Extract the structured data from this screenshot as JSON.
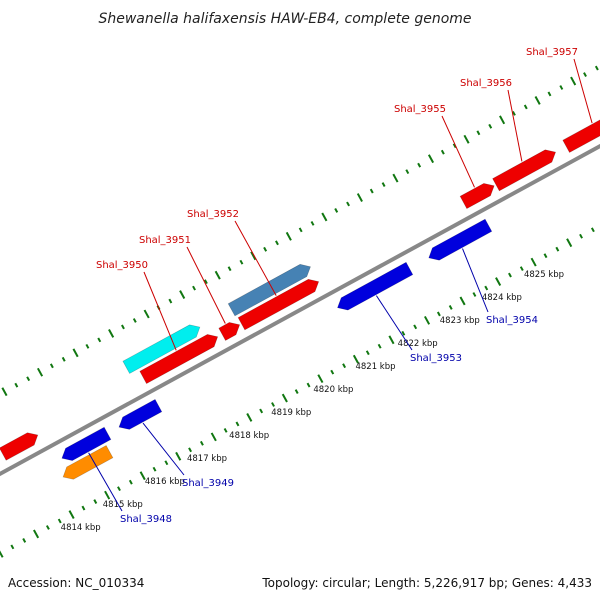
{
  "title": "Shewanella halifaxensis HAW-EB4, complete genome",
  "footer": {
    "accession": "Accession: NC_010334",
    "info": "Topology: circular; Length: 5,226,917 bp; Genes: 4,433"
  },
  "colors": {
    "forward": "#ee0000",
    "reverse": "#0000dd",
    "cyan": "#00eeee",
    "steel": "#4682b4",
    "orange": "#ff8c00",
    "backbone": "#888888",
    "ticks": "#117711",
    "label_forward": "#cc0000",
    "label_reverse": "#0000aa"
  },
  "scale": {
    "ticks": [
      "4814 kbp",
      "4815 kbp",
      "4816 kbp",
      "4817 kbp",
      "4818 kbp",
      "4819 kbp",
      "4820 kbp",
      "4821 kbp",
      "4822 kbp",
      "4823 kbp",
      "4824 kbp",
      "4825 kbp"
    ]
  },
  "genes": {
    "forward": [
      {
        "name": "",
        "color": "forward"
      },
      {
        "name": "Shal_3950",
        "color": "forward"
      },
      {
        "name": "Shal_3951",
        "color": "forward"
      },
      {
        "name": "Shal_3952",
        "color": "forward"
      },
      {
        "name": "Shal_3955",
        "color": "forward"
      },
      {
        "name": "Shal_3956",
        "color": "forward"
      },
      {
        "name": "Shal_3957",
        "color": "forward"
      }
    ],
    "forward_outer": [
      {
        "name": "",
        "color": "cyan"
      },
      {
        "name": "",
        "color": "steel"
      }
    ],
    "reverse": [
      {
        "name": "Shal_3948",
        "color": "reverse"
      },
      {
        "name": "Shal_3949",
        "color": "reverse"
      },
      {
        "name": "Shal_3953",
        "color": "reverse"
      },
      {
        "name": "Shal_3954",
        "color": "reverse"
      }
    ],
    "reverse_outer": [
      {
        "name": "",
        "color": "orange"
      }
    ]
  }
}
